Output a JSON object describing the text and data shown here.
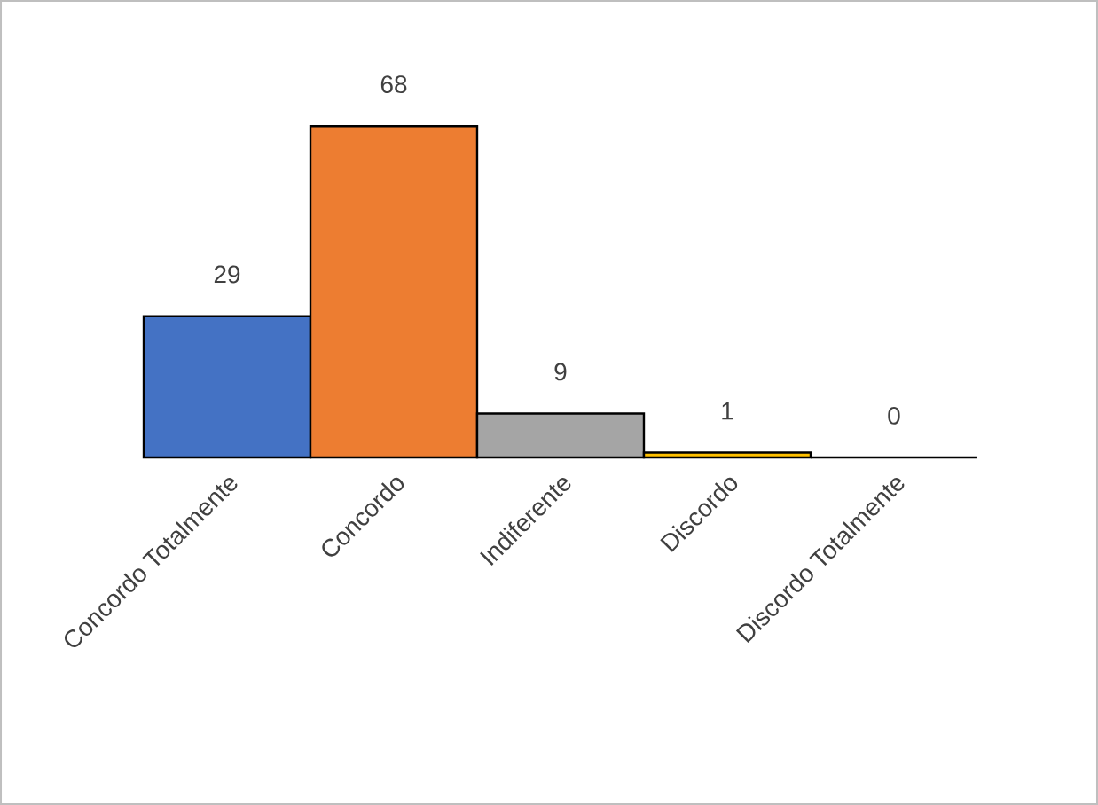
{
  "chart_data": {
    "type": "bar",
    "categories": [
      "Concordo Totalmente",
      "Concordo",
      "Indiferente",
      "Discordo",
      "Discordo Totalmente"
    ],
    "values": [
      29,
      68,
      9,
      1,
      0
    ],
    "colors": [
      "#4472c4",
      "#ed7d31",
      "#a5a5a5",
      "#ffc000",
      "#5b9bd5"
    ],
    "data_labels": true
  }
}
